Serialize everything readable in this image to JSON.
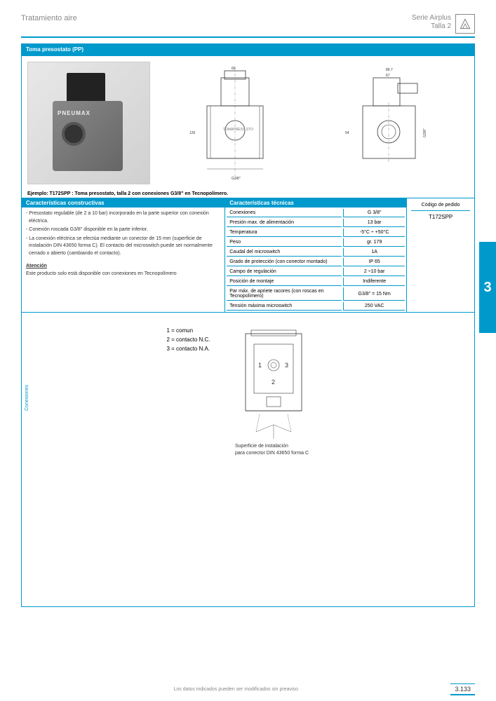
{
  "header": {
    "left": "Tratamiento aire",
    "right_line1": "Serie Airplus",
    "right_line2": "Talla 2",
    "logo_text": "PNEUMAX"
  },
  "section_title": "Toma presostato (PP)",
  "example_line": "Ejemplo: T172SPP : Toma presostato, talla 2 con conexiones G3/8\" en Tecnopolímero.",
  "constructive": {
    "header": "Características constructivas",
    "items": [
      "- Presostato regulable (de 2 a 10 bar) incorporado en la parte superior con conexión eléctrica.",
      "- Conexión roscada G3/8\" disponible en la parte inferior.",
      "- La conexión eléctrica se efectúa mediante un conector de 15 mm (superficie de instalación DIN 43650 forma C). El contacto del microswitch puede ser normalmente cerrado o abierto (cambiando el contacto)."
    ],
    "attention_title": "Atención",
    "attention_text": "Este producto solo está disponible con conexiones en Tecnopolímero"
  },
  "technical": {
    "header": "Características técnicas",
    "rows": [
      {
        "label": "Conexiones",
        "value": "G 3/8\""
      },
      {
        "label": "Presión max. de alimentación",
        "value": "13 bar"
      },
      {
        "label": "Temperatura",
        "value": "-5°C ÷ +50°C"
      },
      {
        "label": "Peso",
        "value": "gr. 179"
      },
      {
        "label": "Caudal del microswitch",
        "value": "1A"
      },
      {
        "label": "Grado de protección (con conector montado)",
        "value": "IP 65"
      },
      {
        "label": "Campo de regulación",
        "value": "2 ÷10 bar"
      },
      {
        "label": "Posición de montaje",
        "value": "Indiferente"
      },
      {
        "label": "Par máx. de apriete racores (con roscas en Tecnopolímero)",
        "value": "G3/8\" = 15 Nm"
      },
      {
        "label": "Tensión máxima microswitch",
        "value": "250 VAC"
      }
    ]
  },
  "order_code": {
    "header": "Código de pedido",
    "value": "T172SPP"
  },
  "connections": {
    "label": "Conexiones",
    "legend": [
      "1 = comun",
      "2 = contacto N.C.",
      "3 = contacto N.A."
    ],
    "note": "Superficie de instalación para conector DIN 43650 forma C"
  },
  "footer": {
    "center": "Los datos indicados pueden ser modificados sin preaviso",
    "page": "3.133"
  },
  "side_tab": "3",
  "photo_label": "PNEUMAX",
  "colors": {
    "accent": "#0099cc",
    "text_muted": "#888888"
  }
}
